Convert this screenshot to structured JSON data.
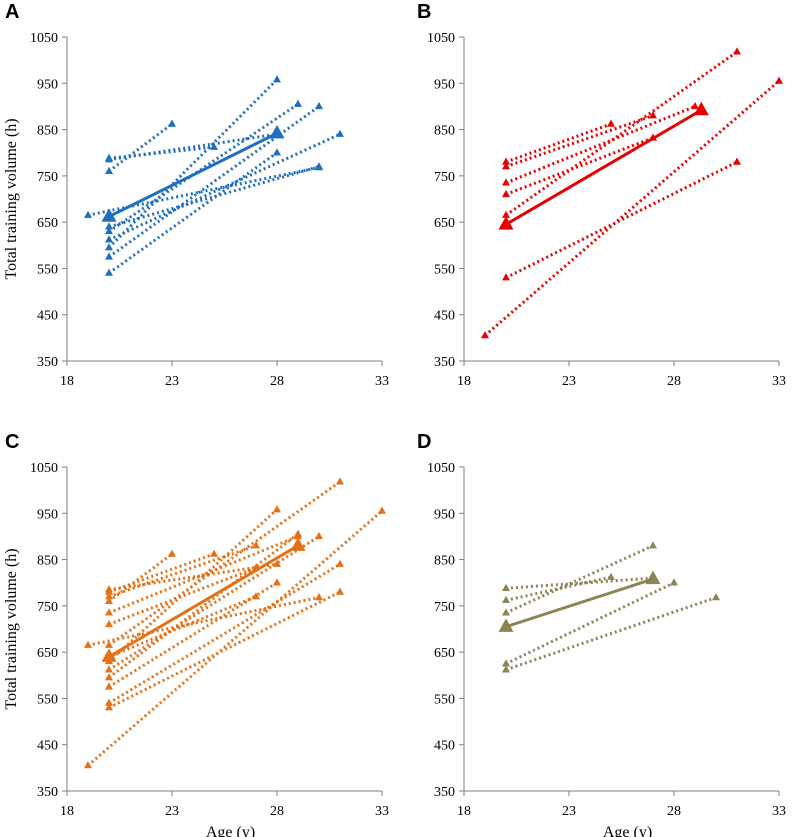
{
  "colors": {
    "A": "#1f6fbf",
    "B": "#e60000",
    "C": "#e67016",
    "D": "#8c8456"
  },
  "chart_data": [
    {
      "type": "line",
      "panel": "A",
      "xlabel": "",
      "ylabel": "Total training volume (h)",
      "xlim": [
        18,
        33
      ],
      "ylim": [
        350,
        1050
      ],
      "xticks": [
        18,
        23,
        28,
        33
      ],
      "yticks": [
        350,
        450,
        550,
        650,
        750,
        850,
        950,
        1050
      ],
      "individual_series": [
        {
          "x": [
            19,
            30
          ],
          "y": [
            665,
            768
          ]
        },
        {
          "x": [
            20,
            23
          ],
          "y": [
            760,
            862
          ]
        },
        {
          "x": [
            20,
            25
          ],
          "y": [
            788,
            812
          ]
        },
        {
          "x": [
            20,
            28
          ],
          "y": [
            595,
            958
          ]
        },
        {
          "x": [
            20,
            29
          ],
          "y": [
            630,
            905
          ]
        },
        {
          "x": [
            20,
            30
          ],
          "y": [
            575,
            900
          ]
        },
        {
          "x": [
            20,
            28
          ],
          "y": [
            540,
            800
          ]
        },
        {
          "x": [
            20,
            31
          ],
          "y": [
            612,
            840
          ]
        },
        {
          "x": [
            20,
            28
          ],
          "y": [
            785,
            840
          ]
        },
        {
          "x": [
            20,
            30
          ],
          "y": [
            640,
            770
          ]
        }
      ],
      "mean_series": {
        "x": [
          20,
          28
        ],
        "y": [
          662,
          842
        ]
      }
    },
    {
      "type": "line",
      "panel": "B",
      "xlabel": "",
      "ylabel": "",
      "xlim": [
        18,
        33
      ],
      "ylim": [
        350,
        1050
      ],
      "xticks": [
        18,
        23,
        28,
        33
      ],
      "yticks": [
        350,
        450,
        550,
        650,
        750,
        850,
        950,
        1050
      ],
      "individual_series": [
        {
          "x": [
            19,
            33
          ],
          "y": [
            405,
            955
          ]
        },
        {
          "x": [
            20,
            31
          ],
          "y": [
            530,
            780
          ]
        },
        {
          "x": [
            20,
            31
          ],
          "y": [
            665,
            1018
          ]
        },
        {
          "x": [
            20,
            27
          ],
          "y": [
            710,
            832
          ]
        },
        {
          "x": [
            20,
            29
          ],
          "y": [
            735,
            900
          ]
        },
        {
          "x": [
            20,
            27
          ],
          "y": [
            770,
            880
          ]
        },
        {
          "x": [
            20,
            25
          ],
          "y": [
            780,
            862
          ]
        }
      ],
      "mean_series": {
        "x": [
          20,
          29.3
        ],
        "y": [
          645,
          892
        ]
      }
    },
    {
      "type": "line",
      "panel": "C",
      "xlabel": "Age (y)",
      "ylabel": "Total training volume (h)",
      "xlim": [
        18,
        33
      ],
      "ylim": [
        350,
        1050
      ],
      "xticks": [
        18,
        23,
        28,
        33
      ],
      "yticks": [
        350,
        450,
        550,
        650,
        750,
        850,
        950,
        1050
      ],
      "individual_series": [
        {
          "x": [
            19,
            33
          ],
          "y": [
            405,
            955
          ]
        },
        {
          "x": [
            19,
            30
          ],
          "y": [
            665,
            768
          ]
        },
        {
          "x": [
            20,
            31
          ],
          "y": [
            530,
            780
          ]
        },
        {
          "x": [
            20,
            31
          ],
          "y": [
            540,
            840
          ]
        },
        {
          "x": [
            20,
            28
          ],
          "y": [
            575,
            800
          ]
        },
        {
          "x": [
            20,
            29
          ],
          "y": [
            595,
            905
          ]
        },
        {
          "x": [
            20,
            30
          ],
          "y": [
            612,
            900
          ]
        },
        {
          "x": [
            20,
            28
          ],
          "y": [
            630,
            958
          ]
        },
        {
          "x": [
            20,
            27
          ],
          "y": [
            640,
            770
          ]
        },
        {
          "x": [
            20,
            31
          ],
          "y": [
            665,
            1018
          ]
        },
        {
          "x": [
            20,
            27
          ],
          "y": [
            710,
            832
          ]
        },
        {
          "x": [
            20,
            29
          ],
          "y": [
            735,
            900
          ]
        },
        {
          "x": [
            20,
            23
          ],
          "y": [
            760,
            862
          ]
        },
        {
          "x": [
            20,
            27
          ],
          "y": [
            770,
            880
          ]
        },
        {
          "x": [
            20,
            25
          ],
          "y": [
            780,
            862
          ]
        },
        {
          "x": [
            20,
            28
          ],
          "y": [
            785,
            840
          ]
        }
      ],
      "mean_series": {
        "x": [
          20,
          29
        ],
        "y": [
          640,
          880
        ]
      }
    },
    {
      "type": "line",
      "panel": "D",
      "xlabel": "Age (y)",
      "ylabel": "",
      "xlim": [
        18,
        33
      ],
      "ylim": [
        350,
        1050
      ],
      "xticks": [
        18,
        23,
        28,
        33
      ],
      "yticks": [
        350,
        450,
        550,
        650,
        750,
        850,
        950,
        1050
      ],
      "individual_series": [
        {
          "x": [
            20,
            30
          ],
          "y": [
            612,
            768
          ]
        },
        {
          "x": [
            20,
            28
          ],
          "y": [
            625,
            800
          ]
        },
        {
          "x": [
            20,
            27
          ],
          "y": [
            735,
            880
          ]
        },
        {
          "x": [
            20,
            25
          ],
          "y": [
            762,
            812
          ]
        },
        {
          "x": [
            20,
            27
          ],
          "y": [
            788,
            810
          ]
        }
      ],
      "mean_series": {
        "x": [
          20,
          27
        ],
        "y": [
          705,
          808
        ]
      }
    }
  ]
}
